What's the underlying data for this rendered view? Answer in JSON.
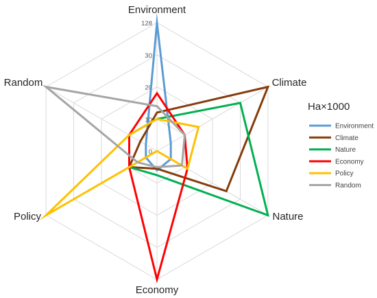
{
  "chart_data": {
    "type": "radar",
    "axes": [
      "Environment",
      "Climate",
      "Nature",
      "Economy",
      "Policy",
      "Random"
    ],
    "ticks": [
      "128",
      "30",
      "20",
      "10",
      "0"
    ],
    "legend_title": "Ha×1000",
    "legend_position": "right",
    "grid": true,
    "series": [
      {
        "name": "Environment",
        "color": "#5B9BD5",
        "values": [
          128,
          5,
          5,
          6,
          4,
          4
        ]
      },
      {
        "name": "Climate",
        "color": "#843C0C",
        "values": [
          12,
          128,
          25,
          5.5,
          10,
          6
        ]
      },
      {
        "name": "Nature",
        "color": "#00B050",
        "values": [
          10,
          30,
          128,
          7.5,
          10,
          10
        ]
      },
      {
        "name": "Economy",
        "color": "#FF0000",
        "values": [
          18,
          10,
          11,
          128,
          10,
          10
        ]
      },
      {
        "name": "Policy",
        "color": "#FFC000",
        "values": [
          10,
          15,
          11,
          0,
          128,
          10
        ]
      },
      {
        "name": "Random",
        "color": "#A5A5A5",
        "values": [
          14,
          10,
          9,
          5,
          7,
          128
        ]
      }
    ]
  }
}
